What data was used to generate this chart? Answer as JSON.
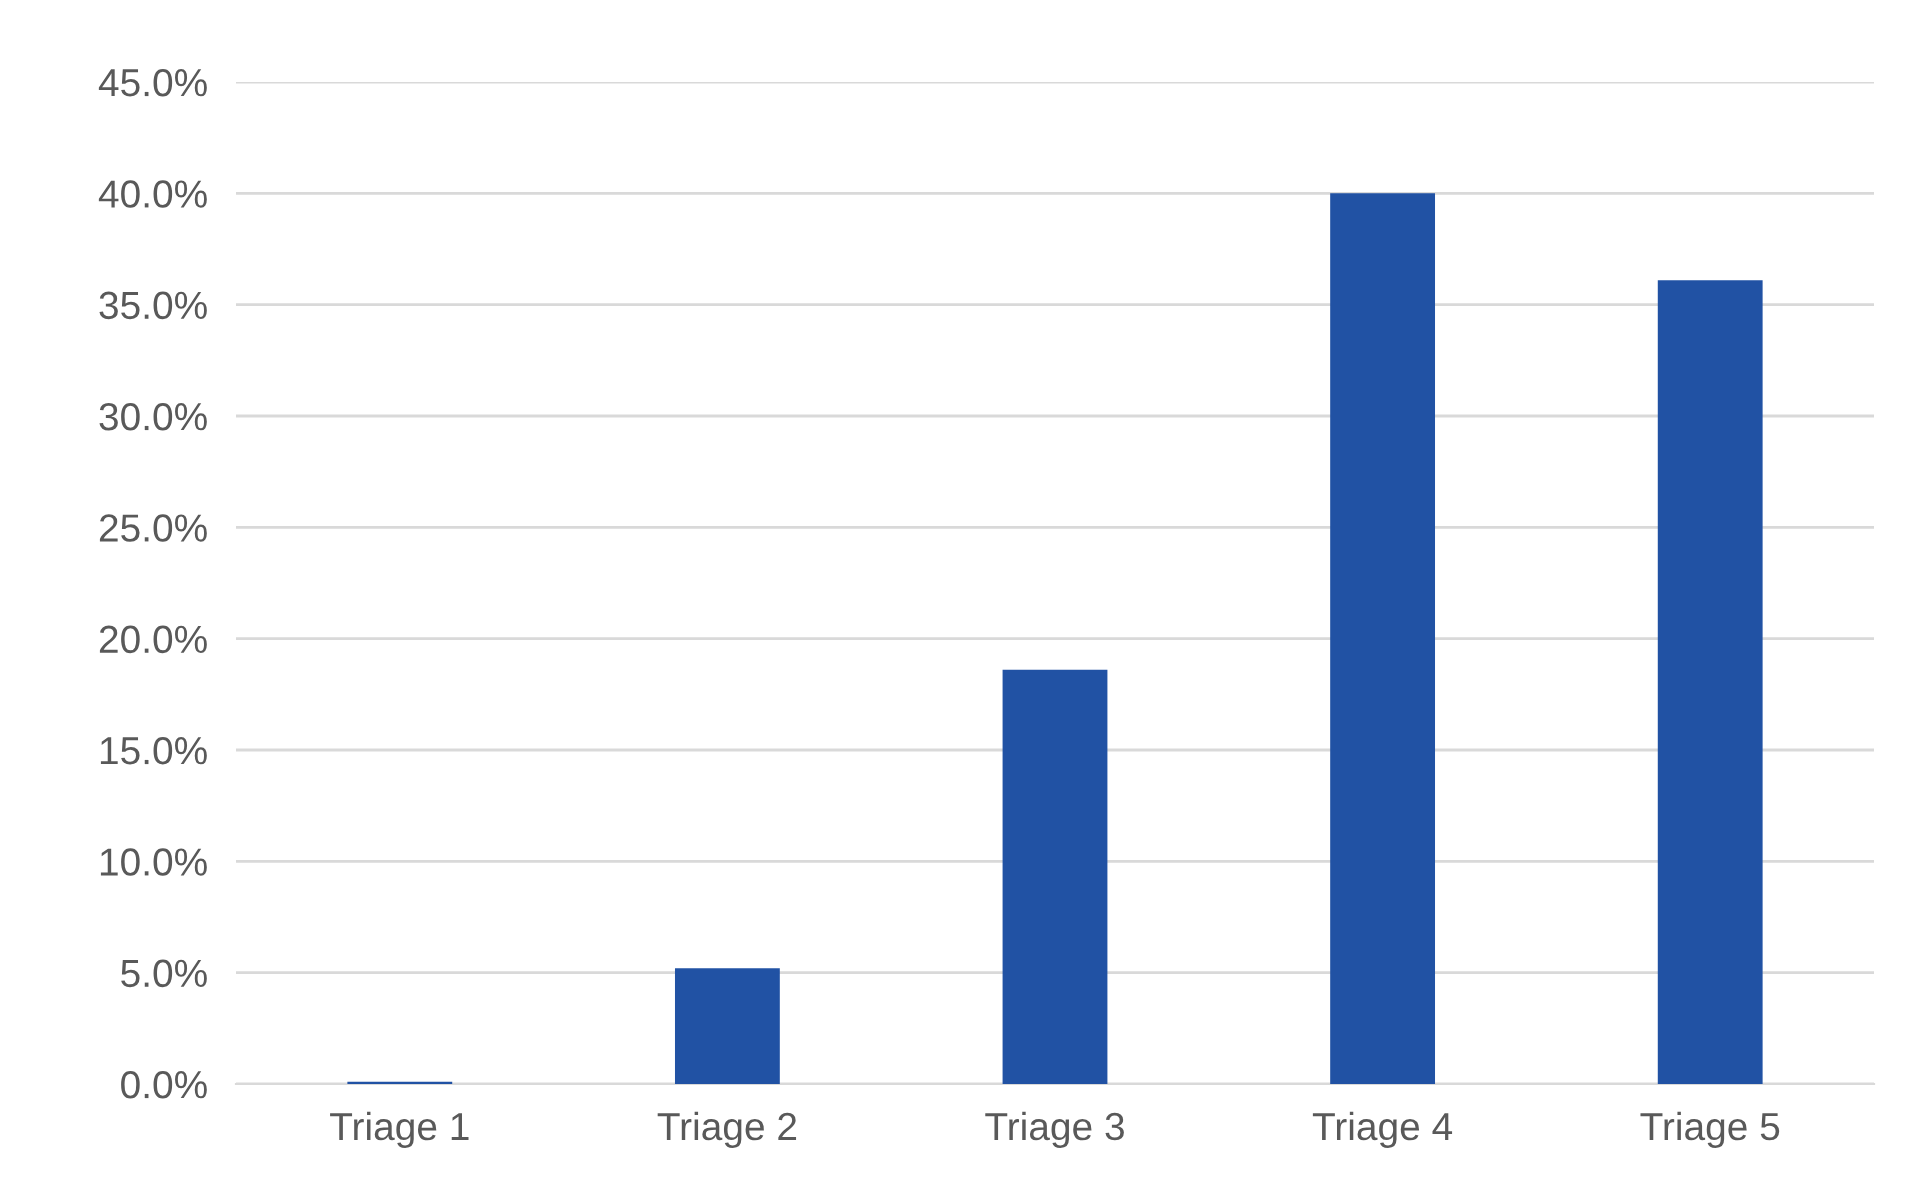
{
  "chart_data": {
    "type": "bar",
    "categories": [
      "Triage 1",
      "Triage 2",
      "Triage 3",
      "Triage 4",
      "Triage 5"
    ],
    "values": [
      0.1,
      5.2,
      18.6,
      40.0,
      36.1
    ],
    "color": "#2152a4",
    "ylim": [
      0,
      45
    ],
    "yticks": [
      {
        "value": 0,
        "label": "0.0%"
      },
      {
        "value": 5,
        "label": "5.0%"
      },
      {
        "value": 10,
        "label": "10.0%"
      },
      {
        "value": 15,
        "label": "15.0%"
      },
      {
        "value": 20,
        "label": "20.0%"
      },
      {
        "value": 25,
        "label": "25.0%"
      },
      {
        "value": 30,
        "label": "30.0%"
      },
      {
        "value": 35,
        "label": "35.0%"
      },
      {
        "value": 40,
        "label": "40.0%"
      },
      {
        "value": 45,
        "label": "45.0%"
      }
    ],
    "grid": "y",
    "legend": false
  }
}
